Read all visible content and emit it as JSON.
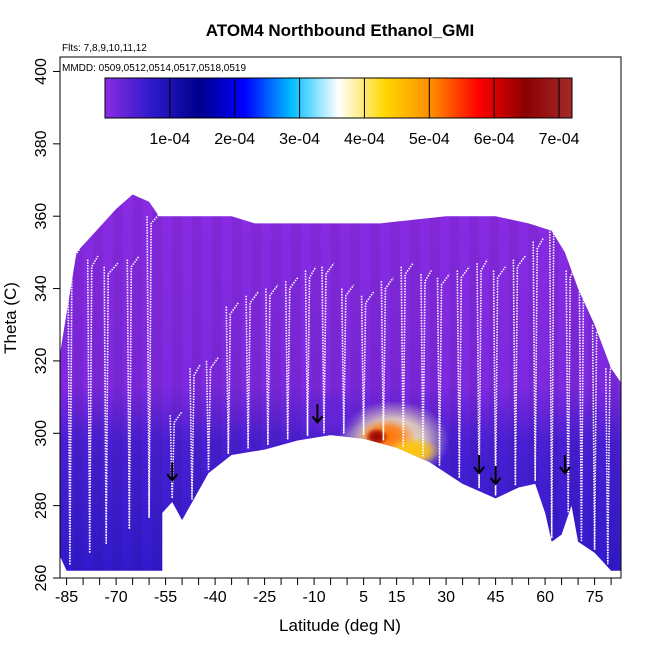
{
  "chart_data": {
    "type": "heatmap",
    "title": "ATOM4 Northbound Ethanol_GMI",
    "notes": [
      "Flts: 7,8,9,10,11,12",
      "MMDD: 0509,0512,0514,0517,0518,0519"
    ],
    "xlabel": "Latitude (deg N)",
    "ylabel": "Theta (C)",
    "xlim": [
      -87,
      83
    ],
    "ylim": [
      260,
      404
    ],
    "x_ticks": [
      -85,
      -70,
      -55,
      -40,
      -25,
      -10,
      5,
      15,
      30,
      45,
      60,
      75
    ],
    "x_minor_ticks": [
      -80,
      -75,
      -65,
      -60,
      -50,
      -45,
      -35,
      -30,
      -20,
      -15,
      -5,
      0,
      10,
      20,
      25,
      35,
      40,
      50,
      55,
      65,
      70,
      80
    ],
    "y_ticks": [
      260,
      280,
      300,
      320,
      340,
      360,
      380,
      400
    ],
    "colorbar": {
      "min": 0,
      "max": 0.00072,
      "tick_values": [
        0.0001,
        0.0002,
        0.0003,
        0.0004,
        0.0005,
        0.0006,
        0.0007
      ],
      "tick_labels": [
        "1e-04",
        "2e-04",
        "3e-04",
        "4e-04",
        "5e-04",
        "6e-04",
        "7e-04"
      ],
      "colors": [
        "#8a2be2",
        "#2d1acb",
        "#00008b",
        "#0000ff",
        "#00bfff",
        "#ffffff",
        "#ffd700",
        "#ff8c00",
        "#ff0000",
        "#8b0000",
        "#a52a2a"
      ]
    },
    "field_top": [
      [
        -87,
        322
      ],
      [
        -82,
        350
      ],
      [
        -76,
        356
      ],
      [
        -70,
        362
      ],
      [
        -65,
        366
      ],
      [
        -60,
        364
      ],
      [
        -57,
        360
      ],
      [
        -50,
        360
      ],
      [
        -35,
        360
      ],
      [
        -28,
        358
      ],
      [
        -10,
        358
      ],
      [
        10,
        358
      ],
      [
        30,
        360
      ],
      [
        45,
        360
      ],
      [
        55,
        358
      ],
      [
        62,
        356
      ],
      [
        66,
        350
      ],
      [
        70,
        340
      ],
      [
        75,
        330
      ],
      [
        80,
        318
      ],
      [
        83,
        314
      ]
    ],
    "field_bottom": [
      [
        83,
        262
      ],
      [
        80,
        262
      ],
      [
        75,
        267
      ],
      [
        70,
        270
      ],
      [
        68,
        280
      ],
      [
        65,
        272
      ],
      [
        62,
        270
      ],
      [
        60,
        278
      ],
      [
        57,
        286
      ],
      [
        52,
        285
      ],
      [
        45,
        282
      ],
      [
        35,
        286
      ],
      [
        25,
        292
      ],
      [
        15,
        296
      ],
      [
        5,
        298.5
      ],
      [
        -5,
        299.5
      ],
      [
        -15,
        298
      ],
      [
        -25,
        295.5
      ],
      [
        -35,
        294
      ],
      [
        -42,
        289
      ],
      [
        -50,
        276
      ],
      [
        -53,
        281
      ],
      [
        -56,
        278
      ],
      [
        -56,
        262
      ],
      [
        -85,
        262
      ],
      [
        -87,
        266
      ]
    ],
    "blobs": [
      {
        "lat": 14,
        "theta": 298,
        "value": 0.00038,
        "spread_lat": 17,
        "spread_theta": 11
      },
      {
        "lat": 12,
        "theta": 299,
        "value": 0.00052,
        "spread_lat": 9,
        "spread_theta": 5
      },
      {
        "lat": 9,
        "theta": 299,
        "value": 0.00064,
        "spread_lat": 3.5,
        "spread_theta": 2.5
      },
      {
        "lat": 20,
        "theta": 295,
        "value": 0.00045,
        "spread_lat": 8,
        "spread_theta": 4
      },
      {
        "lat": 40,
        "theta": 290,
        "value": 6e-05,
        "spread_lat": 6,
        "spread_theta": 3
      },
      {
        "lat": -5,
        "theta": 305,
        "value": 3e-05,
        "spread_lat": 10,
        "spread_theta": 6
      }
    ],
    "flight_track": {
      "dives": [
        -84,
        -78,
        -73,
        -66,
        -60,
        -53,
        -47,
        -42,
        -36,
        -30,
        -24,
        -18,
        -12,
        -7,
        -1,
        5,
        11,
        17,
        23,
        28,
        34,
        40,
        45,
        51,
        57,
        62,
        67,
        71,
        75,
        79
      ],
      "peaks": [
        350,
        348,
        346,
        348,
        360,
        305,
        318,
        320,
        335,
        338,
        340,
        342,
        345,
        346,
        340,
        338,
        342,
        346,
        344,
        343,
        345,
        347,
        345,
        348,
        353,
        358,
        345,
        340,
        330,
        318
      ]
    },
    "arrows": [
      {
        "lat": -53,
        "theta": 287
      },
      {
        "lat": -9,
        "theta": 303
      },
      {
        "lat": 40,
        "theta": 289
      },
      {
        "lat": 45,
        "theta": 286
      },
      {
        "lat": 66,
        "theta": 289
      }
    ]
  }
}
